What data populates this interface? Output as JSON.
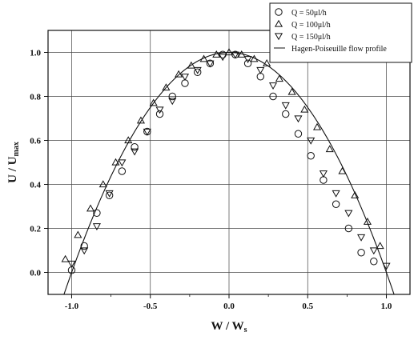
{
  "chart_data": {
    "type": "scatter",
    "title": "",
    "xlabel": "W / W",
    "xlabel_sub": "s",
    "ylabel": "U / U",
    "ylabel_sub": "max",
    "xlim": [
      -1.15,
      1.15
    ],
    "ylim": [
      -0.1,
      1.1
    ],
    "xticks": [
      -1.0,
      -0.5,
      0.0,
      0.5,
      1.0
    ],
    "xtick_labels": [
      "-1.0",
      "-0.5",
      "0.0",
      "0.5",
      "1.0"
    ],
    "yticks": [
      0.0,
      0.2,
      0.4,
      0.6,
      0.8,
      1.0
    ],
    "ytick_labels": [
      "0.0",
      "0.2",
      "0.4",
      "0.6",
      "0.8",
      "1.0"
    ],
    "grid": true,
    "legend_position": "top-right",
    "series": [
      {
        "name": "Q = 50μl/h",
        "marker": "circle",
        "x": [
          -1.0,
          -0.92,
          -0.84,
          -0.76,
          -0.68,
          -0.6,
          -0.52,
          -0.44,
          -0.36,
          -0.28,
          -0.2,
          -0.12,
          -0.04,
          0.04,
          0.12,
          0.2,
          0.28,
          0.36,
          0.44,
          0.52,
          0.6,
          0.68,
          0.76,
          0.84,
          0.92
        ],
        "y": [
          0.01,
          0.12,
          0.27,
          0.35,
          0.46,
          0.57,
          0.64,
          0.72,
          0.8,
          0.86,
          0.91,
          0.95,
          0.99,
          0.99,
          0.95,
          0.89,
          0.8,
          0.72,
          0.63,
          0.53,
          0.42,
          0.31,
          0.2,
          0.09,
          0.05
        ]
      },
      {
        "name": "Q = 100μl/h",
        "marker": "triangle-up",
        "x": [
          -1.04,
          -0.96,
          -0.88,
          -0.8,
          -0.72,
          -0.64,
          -0.56,
          -0.48,
          -0.4,
          -0.32,
          -0.24,
          -0.16,
          -0.08,
          0.0,
          0.08,
          0.16,
          0.24,
          0.32,
          0.4,
          0.48,
          0.56,
          0.64,
          0.72,
          0.8,
          0.88,
          0.96
        ],
        "y": [
          0.06,
          0.17,
          0.29,
          0.4,
          0.5,
          0.6,
          0.69,
          0.77,
          0.84,
          0.9,
          0.94,
          0.97,
          0.99,
          1.0,
          0.99,
          0.97,
          0.95,
          0.88,
          0.82,
          0.74,
          0.66,
          0.56,
          0.46,
          0.35,
          0.23,
          0.12
        ]
      },
      {
        "name": "Q = 150μl/h",
        "marker": "triangle-down",
        "x": [
          -1.0,
          -0.92,
          -0.84,
          -0.76,
          -0.68,
          -0.6,
          -0.52,
          -0.44,
          -0.36,
          -0.28,
          -0.2,
          -0.12,
          -0.04,
          0.04,
          0.12,
          0.2,
          0.28,
          0.36,
          0.44,
          0.52,
          0.6,
          0.68,
          0.76,
          0.84,
          0.92,
          1.0
        ],
        "y": [
          0.04,
          0.1,
          0.21,
          0.36,
          0.5,
          0.55,
          0.64,
          0.74,
          0.78,
          0.89,
          0.92,
          0.95,
          0.98,
          0.99,
          0.97,
          0.92,
          0.85,
          0.76,
          0.7,
          0.6,
          0.45,
          0.36,
          0.27,
          0.16,
          0.1,
          0.03
        ]
      }
    ],
    "curve": {
      "name": "Hagen-Poiseuille flow profile",
      "type": "line",
      "equation": "U/Umax = 1 - (W/Ws)^2"
    }
  }
}
